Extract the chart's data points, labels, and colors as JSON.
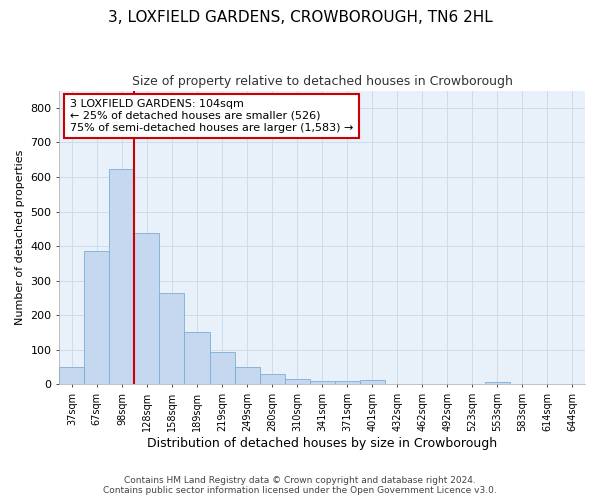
{
  "title": "3, LOXFIELD GARDENS, CROWBOROUGH, TN6 2HL",
  "subtitle": "Size of property relative to detached houses in Crowborough",
  "xlabel": "Distribution of detached houses by size in Crowborough",
  "ylabel": "Number of detached properties",
  "footer_line1": "Contains HM Land Registry data © Crown copyright and database right 2024.",
  "footer_line2": "Contains public sector information licensed under the Open Government Licence v3.0.",
  "categories": [
    "37sqm",
    "67sqm",
    "98sqm",
    "128sqm",
    "158sqm",
    "189sqm",
    "219sqm",
    "249sqm",
    "280sqm",
    "310sqm",
    "341sqm",
    "371sqm",
    "401sqm",
    "432sqm",
    "462sqm",
    "492sqm",
    "523sqm",
    "553sqm",
    "583sqm",
    "614sqm",
    "644sqm"
  ],
  "bar_values": [
    50,
    385,
    623,
    437,
    265,
    153,
    95,
    50,
    30,
    17,
    11,
    10,
    12,
    0,
    0,
    0,
    0,
    6,
    0,
    0,
    0
  ],
  "bar_color": "#c5d8f0",
  "bar_edge_color": "#7aafd4",
  "vline_x": 2.5,
  "vline_color": "#cc0000",
  "ylim": [
    0,
    850
  ],
  "yticks": [
    0,
    100,
    200,
    300,
    400,
    500,
    600,
    700,
    800
  ],
  "annotation_line1": "3 LOXFIELD GARDENS: 104sqm",
  "annotation_line2": "← 25% of detached houses are smaller (526)",
  "annotation_line3": "75% of semi-detached houses are larger (1,583) →",
  "annotation_box_color": "#ffffff",
  "annotation_box_edge": "#cc0000",
  "grid_color": "#c8d8ec",
  "background_color": "#e8f0fa",
  "title_fontsize": 11,
  "subtitle_fontsize": 9
}
